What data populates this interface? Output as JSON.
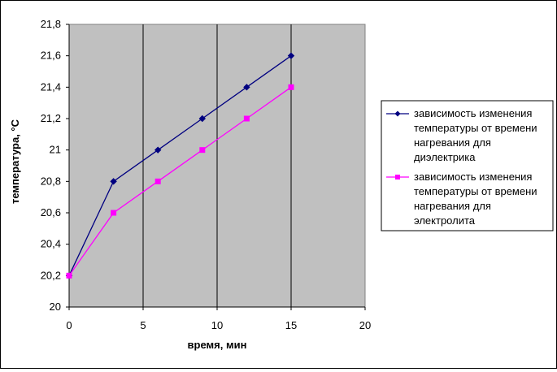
{
  "chart_data": {
    "type": "line",
    "title": "",
    "xlabel": "время, мин",
    "ylabel": "температура, °С",
    "xlim": [
      0,
      20
    ],
    "ylim": [
      20,
      21.8
    ],
    "x_ticks": [
      0,
      5,
      10,
      15,
      20
    ],
    "y_ticks": [
      20,
      20.2,
      20.4,
      20.6,
      20.8,
      21,
      21.2,
      21.4,
      21.6,
      21.8
    ],
    "x_tick_labels": [
      "0",
      "5",
      "10",
      "15",
      "20"
    ],
    "y_tick_labels": [
      "20",
      "20,2",
      "20,4",
      "20,6",
      "20,8",
      "21",
      "21,2",
      "21,4",
      "21,6",
      "21,8"
    ],
    "grid": "vertical",
    "plot_background": "#c0c0c0",
    "legend_position": "right",
    "series": [
      {
        "name": "зависимость изменения температуры от времени нагревания для диэлектрика",
        "legend_lines": [
          "зависимость изменения",
          "температуры от времени",
          "нагревания для",
          "диэлектрика"
        ],
        "color": "#000080",
        "marker": "diamond",
        "x": [
          0,
          3,
          6,
          9,
          12,
          15
        ],
        "y": [
          20.2,
          20.8,
          21.0,
          21.2,
          21.4,
          21.6
        ]
      },
      {
        "name": "зависимость изменения температуры от времени нагревания для электролита",
        "legend_lines": [
          "зависимость изменения",
          "температуры от времени",
          "нагревания для",
          "электролита"
        ],
        "color": "#ff00ff",
        "marker": "square",
        "x": [
          0,
          3,
          6,
          9,
          12,
          15
        ],
        "y": [
          20.2,
          20.6,
          20.8,
          21.0,
          21.2,
          21.4
        ]
      }
    ]
  }
}
